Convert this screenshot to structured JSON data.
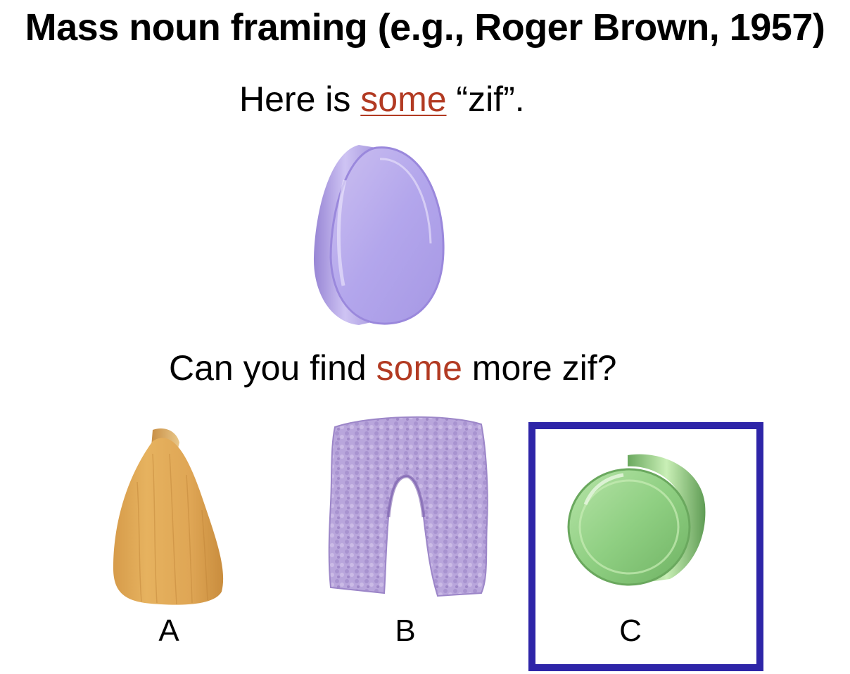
{
  "title": "Mass noun framing (e.g., Roger Brown, 1957)",
  "prompt": {
    "prefix": "Here is ",
    "keyword": "some",
    "suffix": " “zif”."
  },
  "question": {
    "prefix": "Can you find ",
    "keyword": "some",
    "suffix": " more zif?"
  },
  "choices": [
    {
      "label": "A",
      "icon": "wood-teardrop-icon"
    },
    {
      "label": "B",
      "icon": "purple-fuzzy-arch-icon"
    },
    {
      "label": "C",
      "icon": "green-glass-disc-icon"
    }
  ],
  "selected_choice": "C",
  "colors": {
    "accent": "#b23a22",
    "selection_border": "#2e25a8"
  }
}
